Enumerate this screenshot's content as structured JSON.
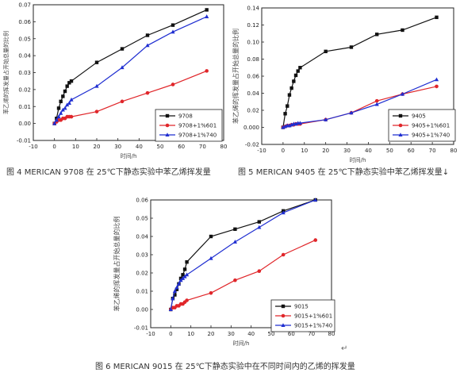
{
  "chart_data": [
    {
      "type": "line",
      "ylabel": "苯乙烯的挥发量占开始总量的比例",
      "xlabel": "时间/h",
      "xlim": [
        -10,
        80
      ],
      "ylim": [
        -0.01,
        0.07
      ],
      "xticks": [
        -10,
        0,
        10,
        20,
        30,
        40,
        50,
        60,
        70,
        80
      ],
      "yticks": [
        -0.01,
        0.0,
        0.01,
        0.02,
        0.03,
        0.04,
        0.05,
        0.06,
        0.07
      ],
      "ytick_labels": [
        "-0.01",
        "0.00",
        "0.01",
        "0.02",
        "0.03",
        "0.04",
        "0.05",
        "0.06",
        "0.07"
      ],
      "legend_position": "lower-right",
      "series": [
        {
          "name": "9708",
          "color": "#111111",
          "marker": "square",
          "x": [
            0,
            1,
            2,
            3,
            4,
            5,
            6,
            7,
            8,
            20,
            32,
            44,
            56,
            72
          ],
          "y": [
            0.0,
            0.003,
            0.009,
            0.013,
            0.016,
            0.019,
            0.022,
            0.024,
            0.025,
            0.036,
            0.044,
            0.052,
            0.058,
            0.067
          ]
        },
        {
          "name": "9708+1%601",
          "color": "#e0262a",
          "marker": "circle",
          "x": [
            0,
            1,
            2,
            3,
            4,
            5,
            6,
            7,
            8,
            20,
            32,
            44,
            56,
            72
          ],
          "y": [
            0.0,
            0.001,
            0.002,
            0.002,
            0.003,
            0.003,
            0.004,
            0.004,
            0.004,
            0.007,
            0.013,
            0.018,
            0.023,
            0.031
          ]
        },
        {
          "name": "9708+1%740",
          "color": "#1f2ed1",
          "marker": "triangle",
          "x": [
            0,
            1,
            2,
            3,
            4,
            5,
            6,
            7,
            8,
            20,
            32,
            44,
            56,
            72
          ],
          "y": [
            0.0,
            0.002,
            0.004,
            0.006,
            0.008,
            0.009,
            0.011,
            0.012,
            0.014,
            0.022,
            0.033,
            0.046,
            0.054,
            0.063
          ]
        }
      ]
    },
    {
      "type": "line",
      "ylabel": "苯乙烯的挥发量占开始总量的比例",
      "xlabel": "时间/h",
      "xlim": [
        -10,
        80
      ],
      "ylim": [
        -0.02,
        0.14
      ],
      "xticks": [
        -10,
        0,
        10,
        20,
        30,
        40,
        50,
        60,
        70,
        80
      ],
      "yticks": [
        -0.02,
        0.0,
        0.02,
        0.04,
        0.06,
        0.08,
        0.1,
        0.12,
        0.14
      ],
      "ytick_labels": [
        "-0.02",
        "0.000",
        "0.02",
        "0.04",
        "0.06",
        "0.08",
        "0.10",
        "0.12",
        "0.14"
      ],
      "legend_position": "lower-right",
      "series": [
        {
          "name": "9405",
          "color": "#111111",
          "marker": "square",
          "x": [
            0,
            1,
            2,
            3,
            4,
            5,
            6,
            7,
            8,
            20,
            32,
            44,
            56,
            72
          ],
          "y": [
            0.0,
            0.016,
            0.025,
            0.038,
            0.046,
            0.054,
            0.061,
            0.066,
            0.07,
            0.089,
            0.094,
            0.109,
            0.114,
            0.129
          ]
        },
        {
          "name": "9405+1%601",
          "color": "#e0262a",
          "marker": "circle",
          "x": [
            0,
            1,
            2,
            3,
            4,
            5,
            6,
            7,
            8,
            20,
            32,
            44,
            56,
            72
          ],
          "y": [
            0.0,
            0.001,
            0.002,
            0.002,
            0.003,
            0.003,
            0.004,
            0.004,
            0.004,
            0.009,
            0.017,
            0.031,
            0.039,
            0.048
          ]
        },
        {
          "name": "9405+1%740",
          "color": "#1f2ed1",
          "marker": "triangle",
          "x": [
            0,
            1,
            2,
            3,
            4,
            5,
            6,
            7,
            8,
            20,
            32,
            44,
            56,
            72
          ],
          "y": [
            0.0,
            0.001,
            0.002,
            0.002,
            0.003,
            0.004,
            0.004,
            0.005,
            0.005,
            0.009,
            0.017,
            0.027,
            0.039,
            0.056
          ]
        }
      ]
    },
    {
      "type": "line",
      "ylabel": "苯乙烯的挥发量占开始总量的比例",
      "xlabel": "时间/h",
      "xlim": [
        -10,
        80
      ],
      "ylim": [
        -0.01,
        0.06
      ],
      "xticks": [
        -10,
        0,
        10,
        20,
        30,
        40,
        50,
        60,
        70,
        80
      ],
      "yticks": [
        -0.01,
        0.0,
        0.01,
        0.02,
        0.03,
        0.04,
        0.05,
        0.06
      ],
      "ytick_labels": [
        "-0.01",
        "0.00",
        "0.01",
        "0.02",
        "0.03",
        "0.04",
        "0.05",
        "0.06"
      ],
      "legend_position": "lower-right",
      "series": [
        {
          "name": "9015",
          "color": "#111111",
          "marker": "square",
          "x": [
            0,
            1,
            2,
            3,
            4,
            5,
            6,
            7,
            8,
            20,
            32,
            44,
            56,
            72
          ],
          "y": [
            0.0,
            0.006,
            0.008,
            0.011,
            0.014,
            0.017,
            0.019,
            0.022,
            0.026,
            0.04,
            0.044,
            0.048,
            0.054,
            0.06
          ]
        },
        {
          "name": "9015+1%601",
          "color": "#e0262a",
          "marker": "circle",
          "x": [
            0,
            1,
            2,
            3,
            4,
            5,
            6,
            7,
            8,
            20,
            32,
            44,
            56,
            72
          ],
          "y": [
            0.0,
            0.001,
            0.001,
            0.002,
            0.002,
            0.003,
            0.003,
            0.004,
            0.005,
            0.009,
            0.016,
            0.021,
            0.03,
            0.038
          ]
        },
        {
          "name": "9015+1%740",
          "color": "#1f2ed1",
          "marker": "triangle",
          "x": [
            0,
            1,
            2,
            3,
            4,
            5,
            6,
            7,
            8,
            20,
            32,
            44,
            56,
            72
          ],
          "y": [
            0.0,
            0.006,
            0.01,
            0.012,
            0.014,
            0.016,
            0.017,
            0.018,
            0.019,
            0.028,
            0.037,
            0.045,
            0.053,
            0.06
          ]
        }
      ]
    }
  ],
  "captions": {
    "fig4": "图 4 MERICAN 9708 在 25℃下静态实验中苯乙烯挥发量",
    "fig5": "图 5 MERICAN 9405 在 25℃下静态实验中苯乙烯挥发量↓",
    "fig6": "图 6 MERICAN 9015 在 25℃下静态实验中在不同时间内的乙烯的挥发量"
  },
  "return_mark": "↵"
}
